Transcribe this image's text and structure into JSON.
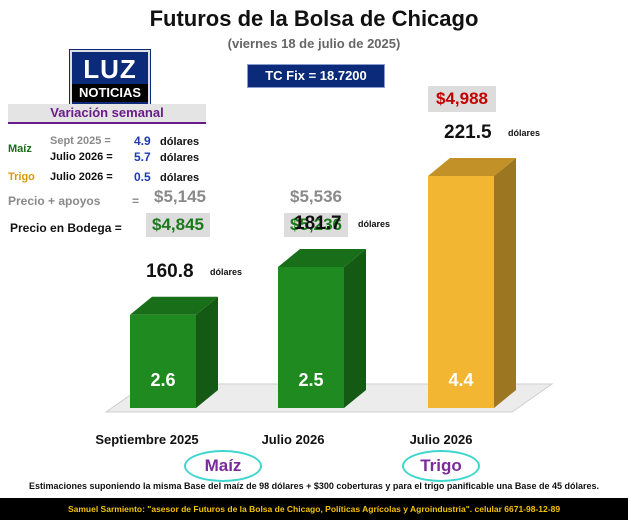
{
  "header": {
    "title": "Futuros de la Bolsa de Chicago",
    "subtitle": "(viernes 18 de julio de 2025)",
    "tc_fix": "TC Fix = 18.7200"
  },
  "logo": {
    "top": "LUZ",
    "bottom": "NOTICIAS"
  },
  "weekly": {
    "header": "Variación semanal",
    "maiz_label": "Maíz",
    "trigo_label": "Trigo",
    "rows": [
      {
        "period": "Sept 2025 =",
        "value": "4.9",
        "unit": "dólares"
      },
      {
        "period": "Julio 2026 =",
        "value": "5.7",
        "unit": "dólares"
      },
      {
        "period": "Julio 2026 =",
        "value": "0.5",
        "unit": "dólares"
      }
    ]
  },
  "prices": {
    "apoyos_label": "Precio + apoyos",
    "apoyos_eq": "=",
    "bodega_label": "Precio en Bodega =",
    "apoyos_values": [
      "$5,145",
      "$5,536"
    ],
    "bodega_values": [
      "$4,845",
      "$5,236"
    ],
    "trigo_price": "$4,988"
  },
  "chart_data": {
    "type": "bar",
    "title": "Futuros de la Bolsa de Chicago",
    "categories": [
      "Septiembre 2025",
      "Julio 2026",
      "Julio 2026"
    ],
    "values": [
      160.8,
      181.7,
      221.5
    ],
    "value_labels": [
      "160.8",
      "181.7",
      "221.5"
    ],
    "value_unit": "dólares",
    "inner_labels": [
      "2.6",
      "2.5",
      "4.4"
    ],
    "colors": [
      "#1f8a1f",
      "#1f8a1f",
      "#f2b632"
    ],
    "groups": [
      "Maíz",
      "Trigo"
    ],
    "grid": false
  },
  "footer": {
    "note": "Estimaciones suponiendo la misma Base del maíz de 98 dólares + $300 coberturas y para el trigo panificable una Base de 45 dólares.",
    "credit": "Samuel Sarmiento: \"asesor de Futuros de la Bolsa de Chicago, Políticas Agrícolas y Agroindustria\". celular 6671-98-12-89"
  }
}
